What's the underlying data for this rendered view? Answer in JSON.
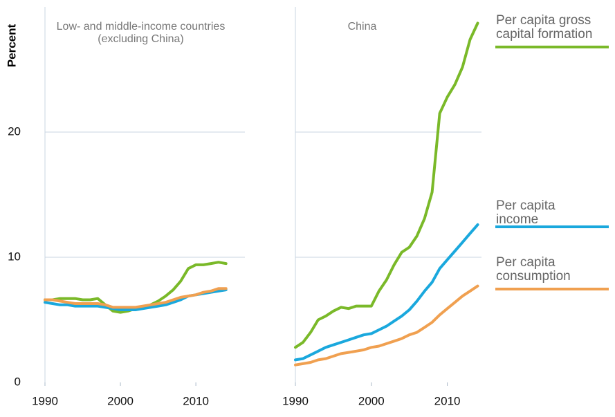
{
  "chart_data": [
    {
      "type": "line",
      "title": "Low- and middle-income countries (excluding China)",
      "ylabel": "Percent",
      "x": [
        1990,
        1991,
        1992,
        1993,
        1994,
        1995,
        1996,
        1997,
        1998,
        1999,
        2000,
        2001,
        2002,
        2003,
        2004,
        2005,
        2006,
        2007,
        2008,
        2009,
        2010,
        2011,
        2012,
        2013,
        2014
      ],
      "xlim": [
        1990,
        2016.5
      ],
      "xticks": [
        1990,
        2000,
        2010
      ],
      "ylim": [
        0,
        30
      ],
      "yticks": [
        0,
        10,
        20
      ],
      "grid": true,
      "series": [
        {
          "color": "#7ab929",
          "values": [
            6.6,
            6.6,
            6.7,
            6.7,
            6.7,
            6.6,
            6.6,
            6.7,
            6.2,
            5.7,
            5.6,
            5.7,
            5.9,
            6.0,
            6.2,
            6.5,
            6.9,
            7.4,
            8.1,
            9.1,
            9.4,
            9.4,
            9.5,
            9.6,
            9.5
          ]
        },
        {
          "color": "#1aa8dd",
          "values": [
            6.4,
            6.3,
            6.2,
            6.2,
            6.1,
            6.1,
            6.1,
            6.1,
            6.0,
            5.9,
            5.8,
            5.8,
            5.8,
            5.9,
            6.0,
            6.1,
            6.2,
            6.4,
            6.6,
            6.9,
            7.0,
            7.1,
            7.2,
            7.3,
            7.4
          ]
        },
        {
          "color": "#f0a050",
          "values": [
            6.6,
            6.6,
            6.5,
            6.4,
            6.3,
            6.3,
            6.3,
            6.3,
            6.2,
            6.0,
            6.0,
            6.0,
            6.0,
            6.1,
            6.2,
            6.3,
            6.4,
            6.6,
            6.8,
            6.9,
            7.0,
            7.2,
            7.3,
            7.5,
            7.5
          ]
        }
      ]
    },
    {
      "type": "line",
      "title": "China",
      "x": [
        1990,
        1991,
        1992,
        1993,
        1994,
        1995,
        1996,
        1997,
        1998,
        1999,
        2000,
        2001,
        2002,
        2003,
        2004,
        2005,
        2006,
        2007,
        2008,
        2009,
        2010,
        2011,
        2012,
        2013,
        2014
      ],
      "xlim": [
        1990,
        2014.5
      ],
      "xticks": [
        1990,
        2000,
        2010
      ],
      "ylim": [
        0,
        30
      ],
      "yticks": [
        0,
        10,
        20
      ],
      "grid": true,
      "series": [
        {
          "name": "Per capita gross capital formation",
          "color": "#7ab929",
          "values": [
            2.8,
            3.2,
            4.0,
            5.0,
            5.3,
            5.7,
            6.0,
            5.9,
            6.1,
            6.1,
            6.1,
            7.3,
            8.2,
            9.4,
            10.4,
            10.8,
            11.7,
            13.1,
            15.2,
            21.5,
            22.8,
            23.8,
            25.2,
            27.4,
            28.7
          ]
        },
        {
          "name": "Per capita income",
          "color": "#1aa8dd",
          "values": [
            1.8,
            1.9,
            2.2,
            2.5,
            2.8,
            3.0,
            3.2,
            3.4,
            3.6,
            3.8,
            3.9,
            4.2,
            4.5,
            4.9,
            5.3,
            5.8,
            6.5,
            7.3,
            8.0,
            9.1,
            9.8,
            10.5,
            11.2,
            11.9,
            12.6
          ]
        },
        {
          "name": "Per capita consumption",
          "color": "#f0a050",
          "values": [
            1.4,
            1.5,
            1.6,
            1.8,
            1.9,
            2.1,
            2.3,
            2.4,
            2.5,
            2.6,
            2.8,
            2.9,
            3.1,
            3.3,
            3.5,
            3.8,
            4.0,
            4.4,
            4.8,
            5.4,
            5.9,
            6.4,
            6.9,
            7.3,
            7.7
          ]
        }
      ]
    }
  ]
}
